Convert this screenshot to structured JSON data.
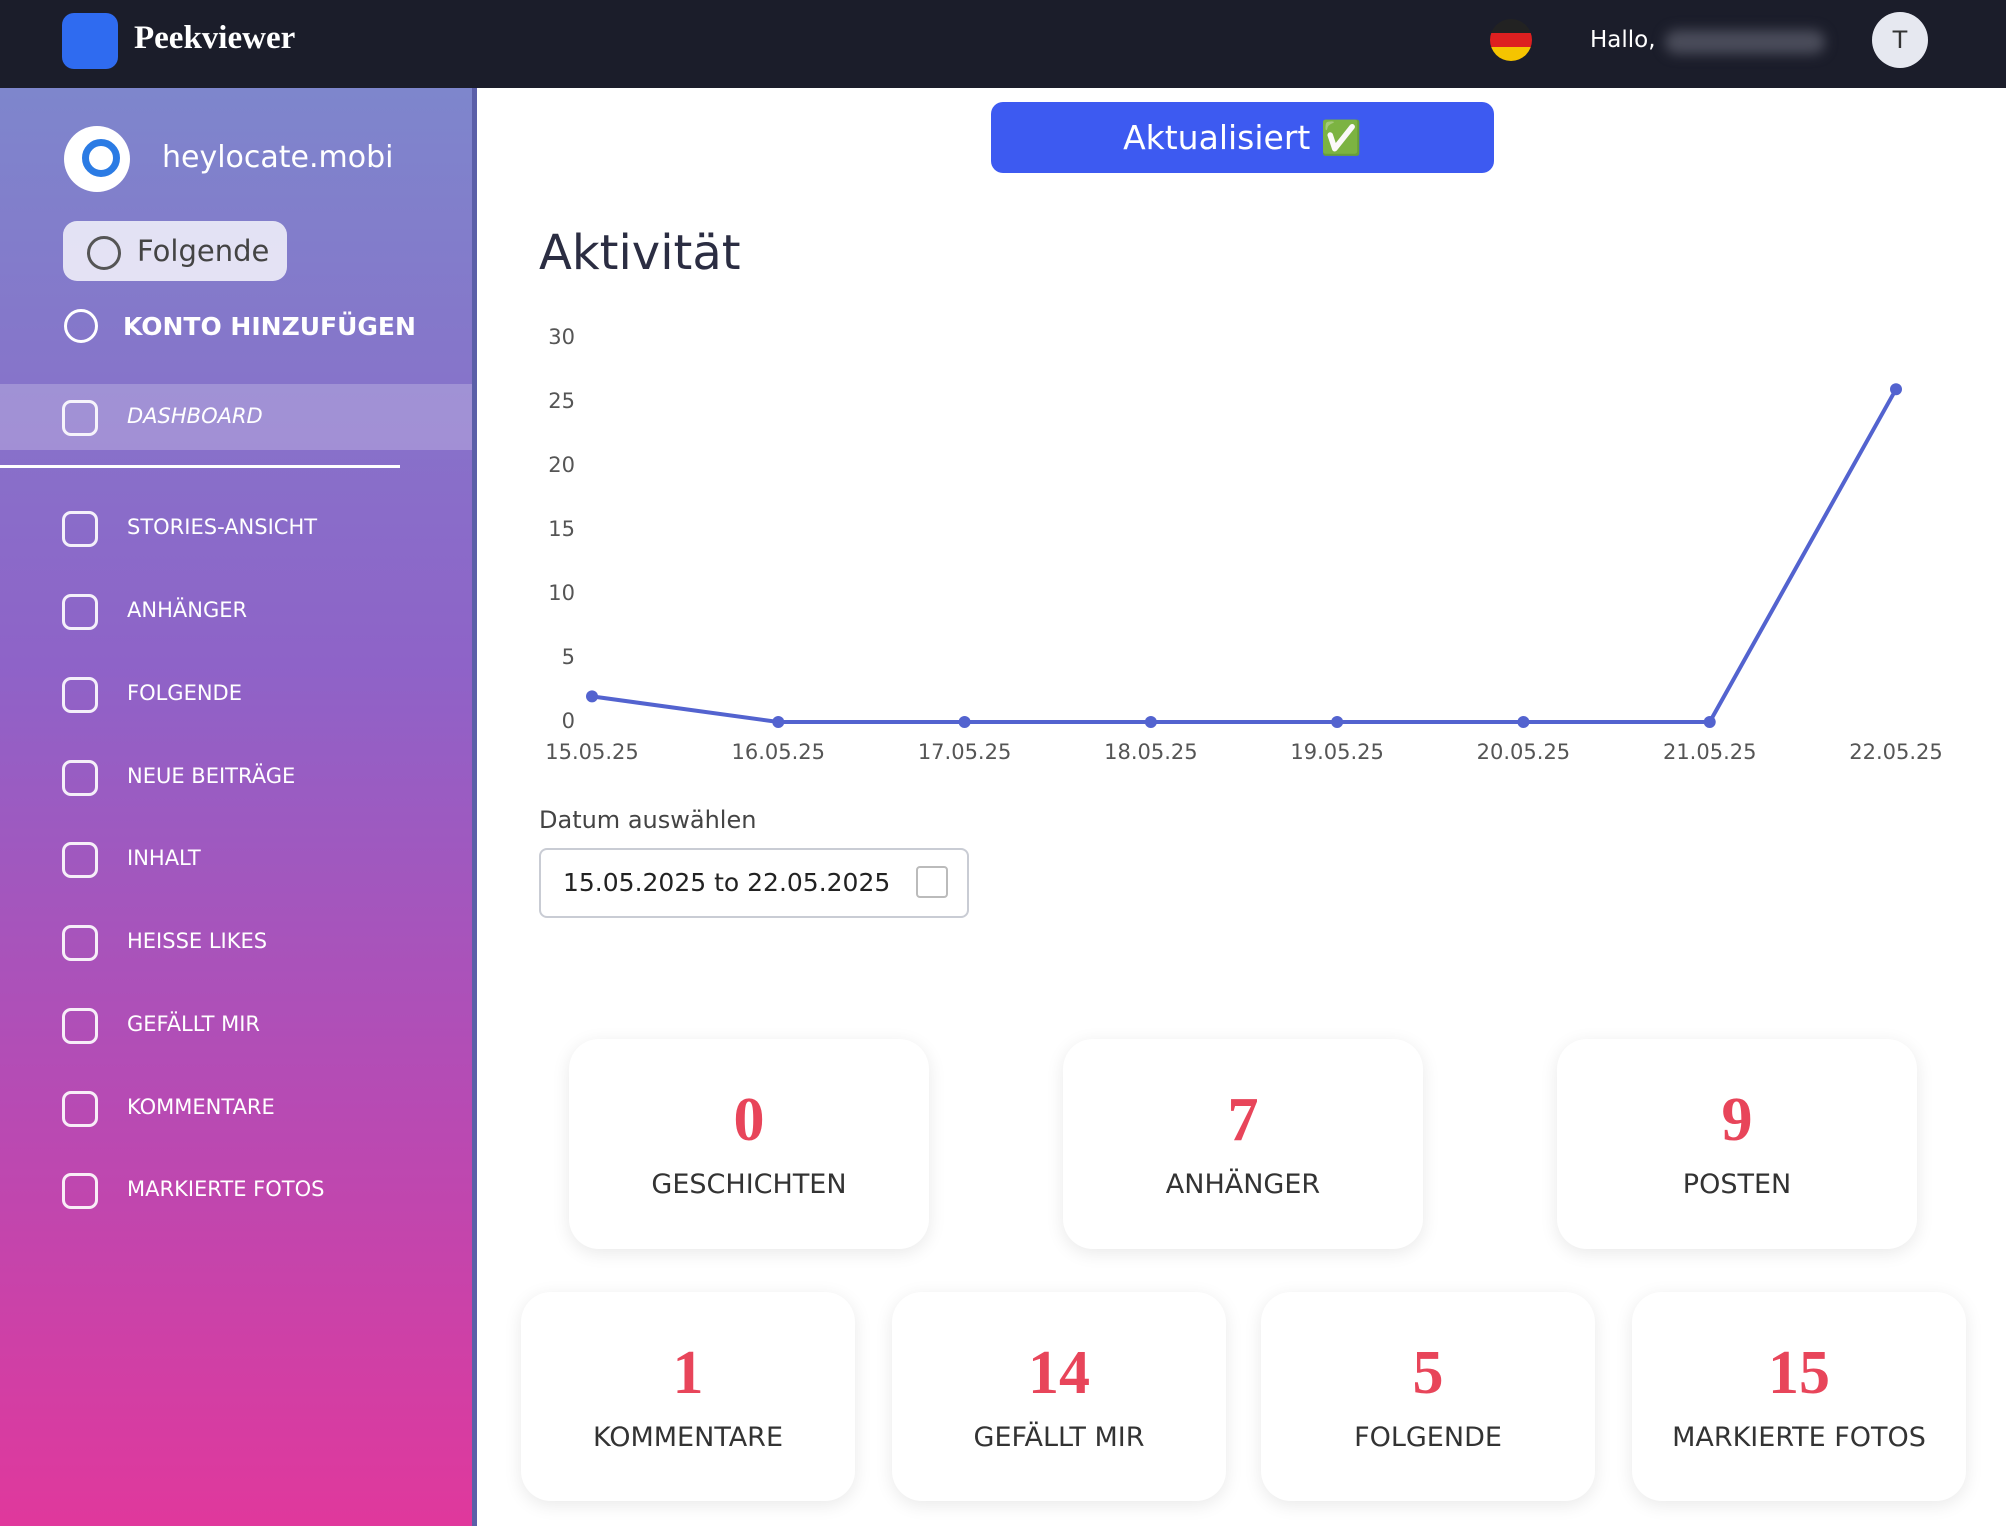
{
  "header": {
    "brand": "Peekviewer",
    "greeting": "Hallo,",
    "avatar": "T"
  },
  "sidebar": {
    "account": "heylocate.mobi",
    "follow_button": "Folgende",
    "add_account": "KONTO HINZUFÜGEN",
    "menu": [
      "DASHBOARD",
      "STORIES-ANSICHT",
      "ANHÄNGER",
      "FOLGENDE",
      "NEUE BEITRÄGE",
      "INHALT",
      "HEISSE LIKES",
      "GEFÄLLT MIR",
      "KOMMENTARE",
      "MARKIERTE FOTOS"
    ]
  },
  "status_button": "Aktualisiert ✅",
  "chart_data": {
    "type": "line",
    "title": "Aktivität",
    "categories": [
      "15.05.25",
      "16.05.25",
      "17.05.25",
      "18.05.25",
      "19.05.25",
      "20.05.25",
      "21.05.25",
      "22.05.25"
    ],
    "values": [
      2,
      0,
      0,
      0,
      0,
      0,
      0,
      26
    ],
    "color": "#5363cf",
    "ylim": [
      0,
      30
    ],
    "yticks": [
      0,
      5,
      10,
      15,
      20,
      25,
      30
    ],
    "grid": false
  },
  "date_picker": {
    "label": "Datum auswählen",
    "value": "15.05.2025 to 22.05.2025"
  },
  "stats": [
    {
      "value": 0,
      "label": "GESCHICHTEN"
    },
    {
      "value": 7,
      "label": "ANHÄNGER"
    },
    {
      "value": 9,
      "label": "POSTEN"
    },
    {
      "value": 1,
      "label": "KOMMENTARE"
    },
    {
      "value": 14,
      "label": "GEFÄLLT MIR"
    },
    {
      "value": 5,
      "label": "FOLGENDE"
    },
    {
      "value": 15,
      "label": "MARKIERTE FOTOS"
    }
  ]
}
